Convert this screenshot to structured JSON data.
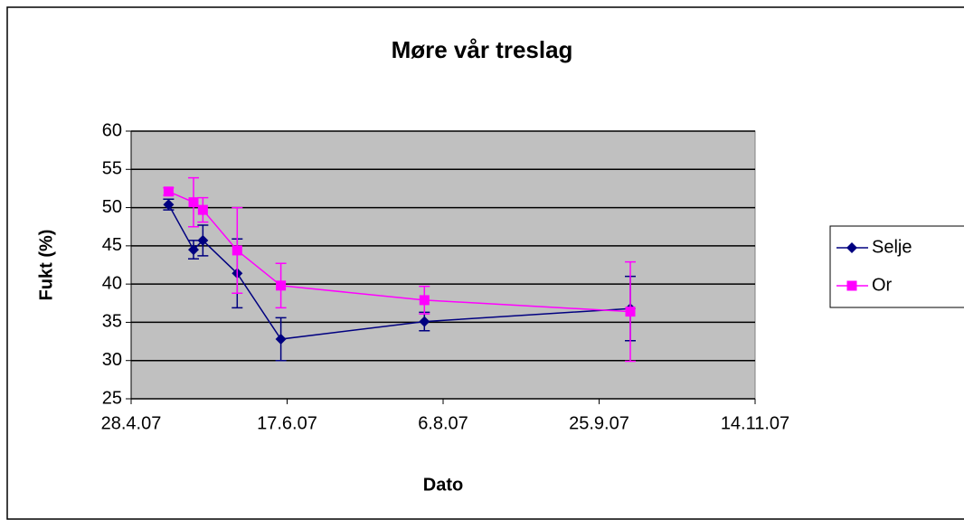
{
  "chart_data": {
    "type": "scatter",
    "title": "Møre vår treslag",
    "x_label": "Dato",
    "y_label": "Fukt (%)",
    "x": [
      "2007-05-10",
      "2007-05-18",
      "2007-05-21",
      "2007-06-01",
      "2007-06-15",
      "2007-07-31",
      "2007-10-05"
    ],
    "series": [
      {
        "name": "Selje",
        "color": "#000080",
        "marker": "diamond",
        "values": [
          50.4,
          44.5,
          45.7,
          41.4,
          32.8,
          35.1,
          36.8
        ],
        "errors": [
          0.7,
          1.2,
          2,
          4.5,
          2.8,
          1.2,
          4.2
        ]
      },
      {
        "name": "Or",
        "color": "#ff00ff",
        "marker": "square",
        "values": [
          52.1,
          50.7,
          49.7,
          44.4,
          39.8,
          37.9,
          36.4
        ],
        "errors": [
          0.5,
          3.2,
          1.6,
          5.6,
          2.9,
          1.8,
          6.5
        ]
      }
    ],
    "xlim": [
      "2007-04-28",
      "2007-11-14"
    ],
    "xticks": [
      {
        "value": "2007-04-28",
        "label": "28.4.07"
      },
      {
        "value": "2007-06-17",
        "label": "17.6.07"
      },
      {
        "value": "2007-08-06",
        "label": "6.8.07"
      },
      {
        "value": "2007-09-25",
        "label": "25.9.07"
      },
      {
        "value": "2007-11-14",
        "label": "14.11.07"
      }
    ],
    "ylim": [
      25,
      60
    ],
    "yticks": [
      25,
      30,
      35,
      40,
      45,
      50,
      55,
      60
    ],
    "grid": true,
    "legend": "right"
  }
}
